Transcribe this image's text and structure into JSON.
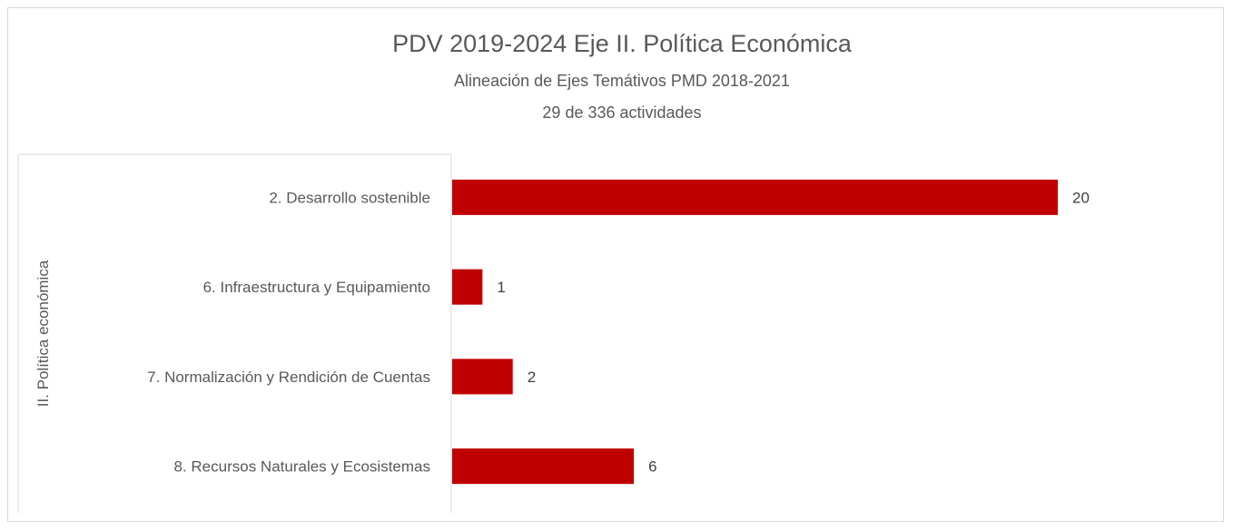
{
  "chart_data": {
    "type": "bar",
    "orientation": "horizontal",
    "title": "PDV 2019-2024 Eje II. Política Económica",
    "subtitle": [
      "Alineación de Ejes Temátivos PMD 2018-2021",
      "29 de 336 actividades"
    ],
    "group_label": "II. Política económica",
    "categories": [
      "2. Desarrollo sostenible",
      "6. Infraestructura y Equipamiento",
      "7. Normalización y Rendición de Cuentas",
      "8. Recursos Naturales y Ecosistemas"
    ],
    "values": [
      20,
      1,
      2,
      6
    ],
    "data_labels": [
      "20",
      "1",
      "2",
      "6"
    ],
    "xlim": [
      0,
      20
    ],
    "grid": false,
    "legend": "none",
    "colors": {
      "bar": "#c00000",
      "text": "#595959",
      "border": "#d9d9d9"
    }
  }
}
